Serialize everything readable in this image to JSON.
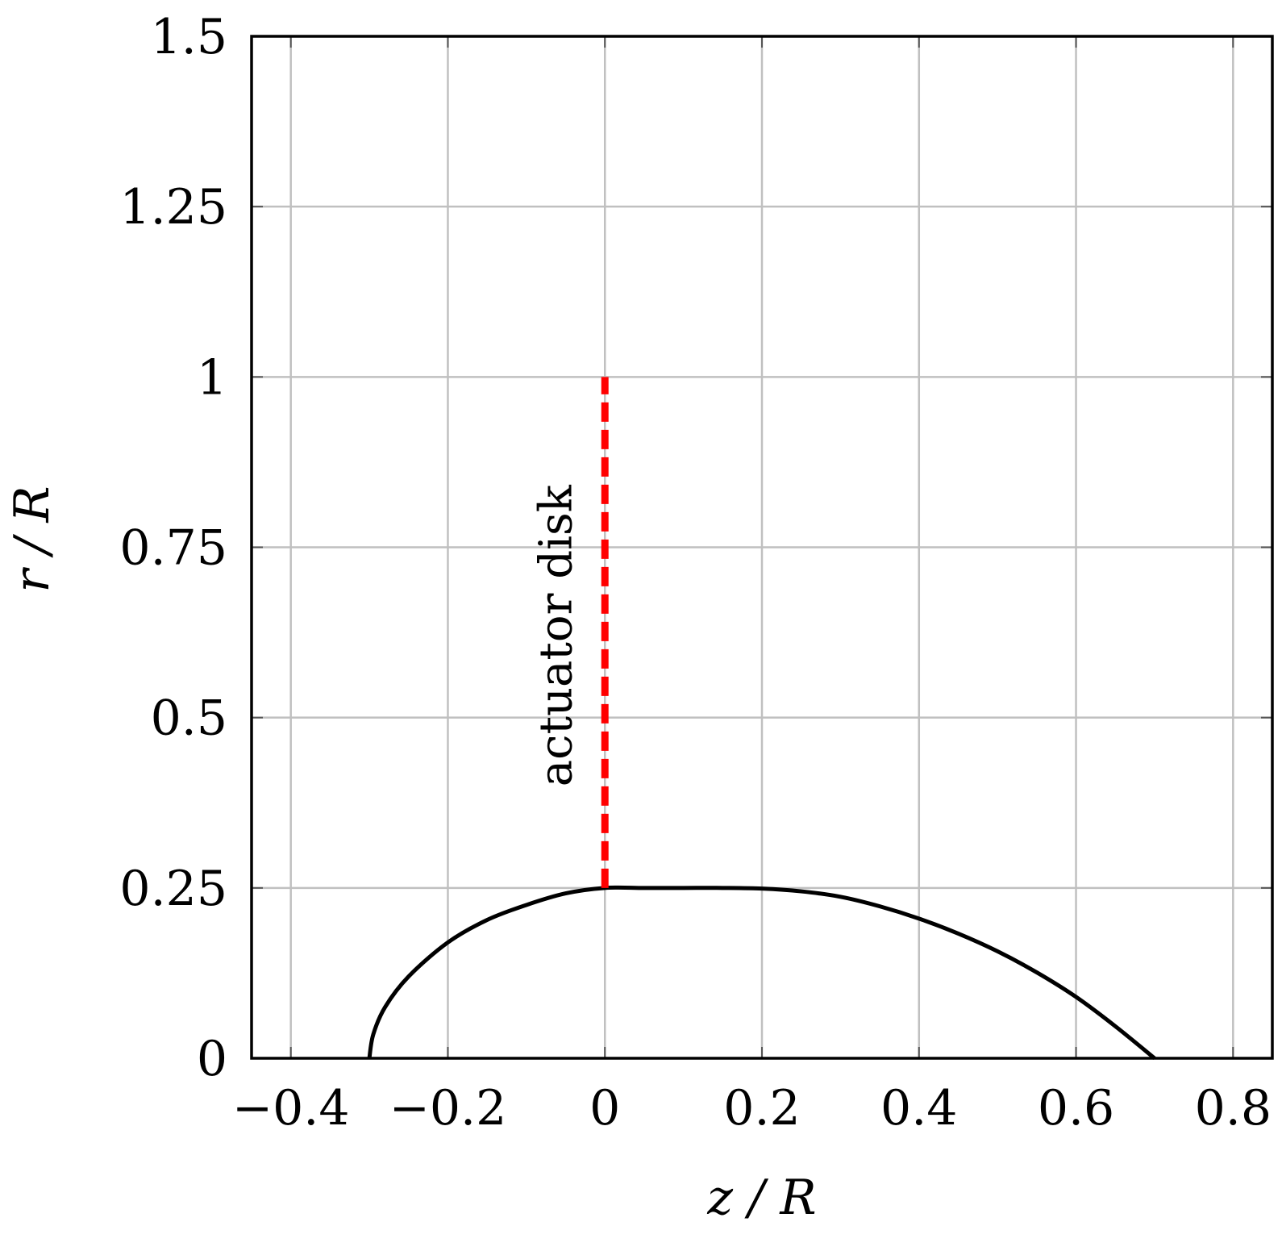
{
  "chart_data": {
    "type": "line",
    "title": "",
    "xlabel": "z / R",
    "ylabel": "r / R",
    "xlim": [
      -0.45,
      0.85
    ],
    "ylim": [
      0,
      1.5
    ],
    "grid": true,
    "x_ticks": [
      -0.4,
      -0.2,
      0,
      0.2,
      0.4,
      0.6,
      0.8
    ],
    "x_tick_labels": [
      "−0.4",
      "−0.2",
      "0",
      "0.2",
      "0.4",
      "0.6",
      "0.8"
    ],
    "y_ticks": [
      0,
      0.25,
      0.5,
      0.75,
      1,
      1.25,
      1.5
    ],
    "y_tick_labels": [
      "0",
      "0.25",
      "0.5",
      "0.75",
      "1",
      "1.25",
      "1.5"
    ],
    "series": [
      {
        "color": "#000000",
        "style": "solid",
        "x": [
          -0.3,
          -0.295,
          -0.28,
          -0.25,
          -0.2,
          -0.15,
          -0.1,
          -0.05,
          0.0,
          0.05,
          0.1,
          0.15,
          0.2,
          0.25,
          0.3,
          0.35,
          0.4,
          0.45,
          0.5,
          0.55,
          0.6,
          0.65,
          0.7
        ],
        "y": [
          0.0,
          0.035,
          0.075,
          0.12,
          0.17,
          0.203,
          0.225,
          0.242,
          0.25,
          0.25,
          0.25,
          0.25,
          0.249,
          0.245,
          0.237,
          0.223,
          0.205,
          0.183,
          0.157,
          0.126,
          0.09,
          0.047,
          0.0
        ]
      },
      {
        "color": "#ff0000",
        "style": "dashed",
        "x": [
          0,
          0
        ],
        "y": [
          0.25,
          1.0
        ]
      }
    ],
    "annotations": [
      {
        "text": "actuator disk",
        "x": -0.02,
        "y": 0.62,
        "rotation": -90
      }
    ]
  }
}
